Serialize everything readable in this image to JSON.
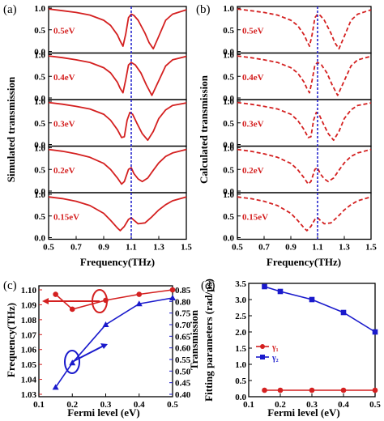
{
  "chart_data": [
    {
      "panel": "(a)",
      "type": "line",
      "ylabel": "Simulated transmission",
      "xlabel": "Frequency(THz)",
      "xlim": [
        0.5,
        1.5
      ],
      "xticks": [
        "0.5",
        "0.7",
        "0.9",
        "1.1",
        "1.3",
        "1.5"
      ],
      "ylim": [
        0.0,
        1.0
      ],
      "yticks": [
        "0.0",
        "0.5",
        "1.0"
      ],
      "line_style": "solid",
      "color": "#d42020",
      "dashed_marker_x": 1.1,
      "subplots": [
        {
          "label": "0.5eV",
          "x": [
            0.5,
            0.6,
            0.7,
            0.8,
            0.9,
            0.95,
            1.0,
            1.02,
            1.04,
            1.06,
            1.08,
            1.1,
            1.12,
            1.15,
            1.2,
            1.23,
            1.26,
            1.3,
            1.35,
            1.4,
            1.5
          ],
          "y": [
            0.98,
            0.94,
            0.9,
            0.84,
            0.72,
            0.6,
            0.38,
            0.24,
            0.12,
            0.4,
            0.78,
            0.86,
            0.83,
            0.72,
            0.42,
            0.2,
            0.06,
            0.35,
            0.72,
            0.86,
            0.96
          ]
        },
        {
          "label": "0.4eV",
          "x": [
            0.5,
            0.6,
            0.7,
            0.8,
            0.9,
            0.95,
            1.0,
            1.02,
            1.04,
            1.06,
            1.08,
            1.1,
            1.13,
            1.17,
            1.21,
            1.25,
            1.3,
            1.35,
            1.4,
            1.5
          ],
          "y": [
            0.97,
            0.93,
            0.88,
            0.82,
            0.7,
            0.58,
            0.36,
            0.22,
            0.12,
            0.42,
            0.76,
            0.82,
            0.76,
            0.58,
            0.3,
            0.06,
            0.4,
            0.74,
            0.88,
            0.96
          ]
        },
        {
          "label": "0.3eV",
          "x": [
            0.5,
            0.6,
            0.7,
            0.8,
            0.9,
            0.95,
            1.0,
            1.03,
            1.05,
            1.07,
            1.09,
            1.11,
            1.14,
            1.18,
            1.22,
            1.26,
            1.3,
            1.35,
            1.4,
            1.5
          ],
          "y": [
            0.97,
            0.93,
            0.88,
            0.82,
            0.7,
            0.56,
            0.34,
            0.16,
            0.18,
            0.56,
            0.74,
            0.7,
            0.5,
            0.25,
            0.1,
            0.3,
            0.6,
            0.8,
            0.9,
            0.96
          ]
        },
        {
          "label": "0.2eV",
          "x": [
            0.5,
            0.6,
            0.7,
            0.8,
            0.9,
            0.95,
            1.0,
            1.03,
            1.05,
            1.08,
            1.1,
            1.12,
            1.15,
            1.18,
            1.22,
            1.26,
            1.3,
            1.35,
            1.4,
            1.5
          ],
          "y": [
            0.96,
            0.92,
            0.86,
            0.78,
            0.64,
            0.5,
            0.3,
            0.16,
            0.22,
            0.5,
            0.54,
            0.4,
            0.28,
            0.22,
            0.3,
            0.48,
            0.65,
            0.8,
            0.88,
            0.96
          ]
        },
        {
          "label": "0.15eV",
          "x": [
            0.5,
            0.6,
            0.7,
            0.8,
            0.9,
            0.95,
            1.0,
            1.02,
            1.05,
            1.08,
            1.1,
            1.12,
            1.15,
            1.2,
            1.25,
            1.3,
            1.35,
            1.4,
            1.5
          ],
          "y": [
            0.94,
            0.9,
            0.84,
            0.74,
            0.56,
            0.4,
            0.22,
            0.16,
            0.26,
            0.42,
            0.46,
            0.4,
            0.32,
            0.34,
            0.48,
            0.64,
            0.76,
            0.85,
            0.94
          ]
        }
      ]
    },
    {
      "panel": "(b)",
      "type": "line",
      "ylabel": "Calculated transmission",
      "xlabel": "Frequency(THz)",
      "xlim": [
        0.5,
        1.5
      ],
      "xticks": [
        "0.5",
        "0.7",
        "0.9",
        "1.1",
        "1.3",
        "1.5"
      ],
      "ylim": [
        0.0,
        1.0
      ],
      "yticks": [
        "0.0",
        "0.5",
        "1.0"
      ],
      "line_style": "dashed",
      "color": "#d42020",
      "dashed_marker_x": 1.1,
      "subplots": [
        {
          "label": "0.5eV",
          "x": [
            0.5,
            0.6,
            0.7,
            0.8,
            0.9,
            0.95,
            1.0,
            1.02,
            1.04,
            1.06,
            1.08,
            1.1,
            1.12,
            1.15,
            1.2,
            1.23,
            1.26,
            1.3,
            1.35,
            1.4,
            1.5
          ],
          "y": [
            0.98,
            0.94,
            0.9,
            0.84,
            0.72,
            0.6,
            0.38,
            0.24,
            0.12,
            0.4,
            0.78,
            0.86,
            0.83,
            0.72,
            0.42,
            0.2,
            0.06,
            0.35,
            0.72,
            0.86,
            0.96
          ]
        },
        {
          "label": "0.4eV",
          "x": [
            0.5,
            0.6,
            0.7,
            0.8,
            0.9,
            0.95,
            1.0,
            1.02,
            1.04,
            1.06,
            1.08,
            1.1,
            1.13,
            1.17,
            1.21,
            1.25,
            1.3,
            1.35,
            1.4,
            1.5
          ],
          "y": [
            0.97,
            0.93,
            0.88,
            0.82,
            0.7,
            0.58,
            0.36,
            0.22,
            0.12,
            0.42,
            0.76,
            0.82,
            0.76,
            0.58,
            0.3,
            0.06,
            0.4,
            0.74,
            0.88,
            0.96
          ]
        },
        {
          "label": "0.3eV",
          "x": [
            0.5,
            0.6,
            0.7,
            0.8,
            0.9,
            0.95,
            1.0,
            1.03,
            1.05,
            1.07,
            1.09,
            1.11,
            1.14,
            1.18,
            1.22,
            1.26,
            1.3,
            1.35,
            1.4,
            1.5
          ],
          "y": [
            0.97,
            0.93,
            0.88,
            0.82,
            0.7,
            0.56,
            0.34,
            0.16,
            0.18,
            0.56,
            0.74,
            0.7,
            0.5,
            0.25,
            0.1,
            0.3,
            0.6,
            0.8,
            0.9,
            0.96
          ]
        },
        {
          "label": "0.2eV",
          "x": [
            0.5,
            0.6,
            0.7,
            0.8,
            0.9,
            0.95,
            1.0,
            1.03,
            1.05,
            1.08,
            1.1,
            1.12,
            1.15,
            1.18,
            1.22,
            1.26,
            1.3,
            1.35,
            1.4,
            1.5
          ],
          "y": [
            0.96,
            0.92,
            0.86,
            0.78,
            0.64,
            0.5,
            0.3,
            0.16,
            0.22,
            0.5,
            0.54,
            0.4,
            0.28,
            0.22,
            0.3,
            0.48,
            0.65,
            0.8,
            0.88,
            0.96
          ]
        },
        {
          "label": "0.15eV",
          "x": [
            0.5,
            0.6,
            0.7,
            0.8,
            0.9,
            0.95,
            1.0,
            1.02,
            1.05,
            1.08,
            1.1,
            1.12,
            1.15,
            1.2,
            1.25,
            1.3,
            1.35,
            1.4,
            1.5
          ],
          "y": [
            0.94,
            0.9,
            0.84,
            0.74,
            0.56,
            0.4,
            0.22,
            0.16,
            0.26,
            0.42,
            0.46,
            0.4,
            0.32,
            0.34,
            0.48,
            0.64,
            0.76,
            0.85,
            0.94
          ]
        }
      ]
    },
    {
      "panel": "(c)",
      "type": "line",
      "xlabel": "Fermi level (eV)",
      "xlim": [
        0.1,
        0.5
      ],
      "xticks": [
        "0.1",
        "0.2",
        "0.3",
        "0.4",
        "0.5"
      ],
      "y_left": {
        "label": "Frequency(THz)",
        "color": "#d42020",
        "lim": [
          1.03,
          1.1
        ],
        "ticks": [
          "1.03",
          "1.04",
          "1.05",
          "1.06",
          "1.07",
          "1.08",
          "1.09",
          "1.10"
        ]
      },
      "y_right": {
        "label": "Transmission",
        "color": "#1a1acc",
        "lim": [
          0.4,
          0.85
        ],
        "ticks": [
          "0.40",
          "0.45",
          "0.50",
          "0.55",
          "0.60",
          "0.65",
          "0.70",
          "0.75",
          "0.80",
          "0.85"
        ]
      },
      "series": [
        {
          "axis": "left",
          "marker": "circle",
          "color": "#d42020",
          "x": [
            0.15,
            0.2,
            0.3,
            0.4,
            0.5
          ],
          "y": [
            1.097,
            1.087,
            1.093,
            1.097,
            1.1
          ]
        },
        {
          "axis": "right",
          "marker": "triangle",
          "color": "#1a1acc",
          "x": [
            0.15,
            0.2,
            0.3,
            0.4,
            0.5
          ],
          "y": [
            0.43,
            0.535,
            0.7,
            0.79,
            0.815
          ]
        }
      ]
    },
    {
      "panel": "(d)",
      "type": "line",
      "xlabel": "Fermi level (eV)",
      "ylabel": "Fitting parameters (rad/ps)",
      "xlim": [
        0.1,
        0.5
      ],
      "xticks": [
        "0.1",
        "0.2",
        "0.3",
        "0.4",
        "0.5"
      ],
      "ylim": [
        0.0,
        3.5
      ],
      "yticks": [
        "0.0",
        "0.5",
        "1.0",
        "1.5",
        "2.0",
        "2.5",
        "3.0",
        "3.5"
      ],
      "legend_position": "left",
      "series": [
        {
          "name": "γ₁",
          "marker": "circle",
          "color": "#d42020",
          "x": [
            0.15,
            0.2,
            0.3,
            0.4,
            0.5
          ],
          "y": [
            0.2,
            0.2,
            0.2,
            0.2,
            0.2
          ]
        },
        {
          "name": "γ₂",
          "marker": "square",
          "color": "#1a1acc",
          "x": [
            0.15,
            0.2,
            0.3,
            0.4,
            0.5
          ],
          "y": [
            3.4,
            3.25,
            3.0,
            2.6,
            2.0
          ]
        }
      ]
    }
  ]
}
